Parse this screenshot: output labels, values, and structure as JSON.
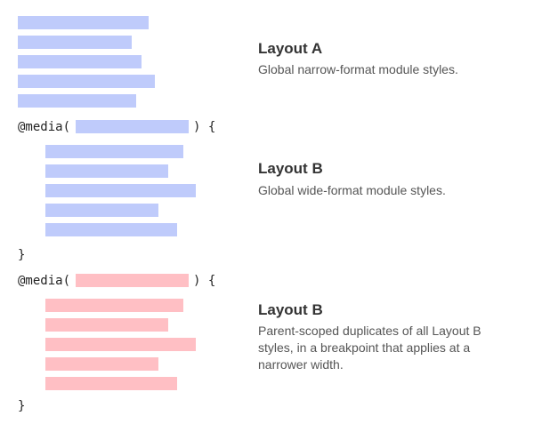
{
  "colors": {
    "global_bar": "#bfcbfb",
    "scoped_bar": "#ffbfc4"
  },
  "code": {
    "media_open": "@media(",
    "brace_open": ") {",
    "brace_close": "}"
  },
  "sections": [
    {
      "title": "Layout A",
      "description": "Global narrow-format module styles."
    },
    {
      "title": "Layout B",
      "description": "Global wide-format module styles."
    },
    {
      "title": "Layout B",
      "description": "Parent-scoped duplicates of all Layout B styles, in a breakpoint that applies at a narrower width."
    }
  ]
}
